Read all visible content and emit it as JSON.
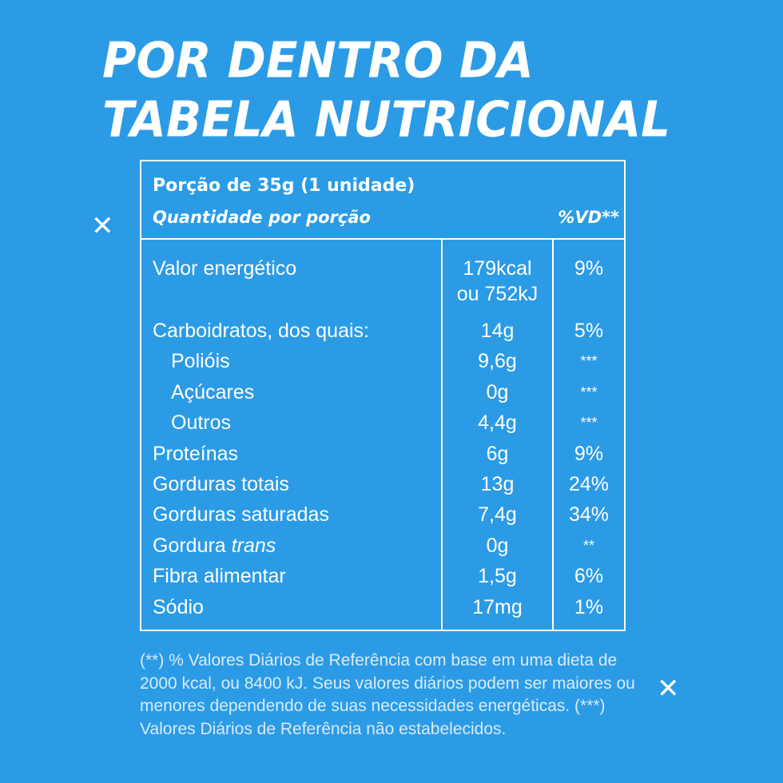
{
  "title": {
    "line1": "POR DENTRO DA",
    "line2": "TABELA NUTRICIONAL"
  },
  "table": {
    "portion": "Porção de 35g (1 unidade)",
    "quantity_label": "Quantidade por porção",
    "vd_header": "%VD**",
    "rows": [
      {
        "name": "Valor energético",
        "amount_line1": "179kcal",
        "amount_line2": "ou 752kJ",
        "vd": "9%"
      },
      {
        "name": "Carboidratos, dos quais:",
        "amount": "14g",
        "vd": "5%"
      },
      {
        "name": "Polióis",
        "amount": "9,6g",
        "vd": "***"
      },
      {
        "name": "Açúcares",
        "amount": "0g",
        "vd": "***"
      },
      {
        "name": "Outros",
        "amount": "4,4g",
        "vd": "***"
      },
      {
        "name": "Proteínas",
        "amount": "6g",
        "vd": "9%"
      },
      {
        "name": "Gorduras totais",
        "amount": "13g",
        "vd": "24%"
      },
      {
        "name": "Gorduras saturadas",
        "amount": "7,4g",
        "vd": "34%"
      },
      {
        "name_prefix": "Gordura ",
        "name_italic": "trans",
        "amount": "0g",
        "vd": "**"
      },
      {
        "name": "Fibra alimentar",
        "amount": "1,5g",
        "vd": "6%"
      },
      {
        "name": "Sódio",
        "amount": "17mg",
        "vd": "1%"
      }
    ]
  },
  "footnote": "(**) % Valores Diários de Referência com base em uma dieta de 2000 kcal, ou 8400 kJ. Seus valores diários podem ser maiores ou menores dependendo de suas necessidades energéticas. (***) Valores Diários de Referência  não estabelecidos.",
  "decorations": {
    "mark_symbol": "✕",
    "icon": "x-icon"
  },
  "colors": {
    "background": "#2b9be6",
    "foreground": "#ffffff"
  }
}
